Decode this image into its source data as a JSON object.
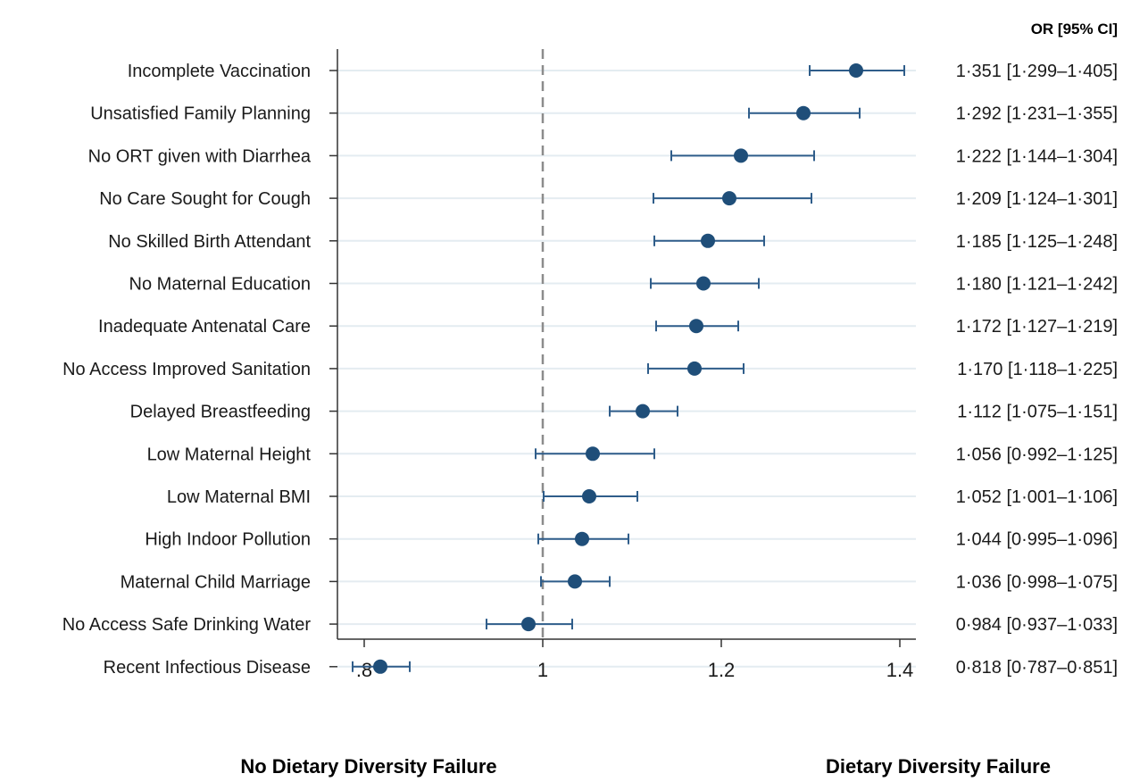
{
  "chart_data": {
    "type": "scatter",
    "subtype": "forest-plot",
    "column_header": "OR [95% CI]",
    "bottom_left_label": "No Dietary Diversity Failure",
    "bottom_right_label": "Dietary Diversity Failure",
    "reference_line": 1,
    "xlim": [
      0.78,
      1.42
    ],
    "xticks": [
      0.8,
      1,
      1.2,
      1.4
    ],
    "xtick_labels": [
      ".8",
      "1",
      "1.2",
      "1.4"
    ],
    "grid": "horizontal",
    "colors": {
      "marker": "#1f4e79",
      "ci": "#2f5d8a",
      "grid": "#e4ecf1",
      "refline": "#8c8c8c",
      "axis": "#333333"
    },
    "rows": [
      {
        "label": "Incomplete Vaccination",
        "or": 1.351,
        "lo": 1.299,
        "hi": 1.405,
        "text": "1·351 [1·299–1·405]"
      },
      {
        "label": "Unsatisfied Family Planning",
        "or": 1.292,
        "lo": 1.231,
        "hi": 1.355,
        "text": "1·292 [1·231–1·355]"
      },
      {
        "label": "No ORT given with Diarrhea",
        "or": 1.222,
        "lo": 1.144,
        "hi": 1.304,
        "text": "1·222 [1·144–1·304]"
      },
      {
        "label": "No Care Sought for Cough",
        "or": 1.209,
        "lo": 1.124,
        "hi": 1.301,
        "text": "1·209 [1·124–1·301]"
      },
      {
        "label": "No Skilled Birth Attendant",
        "or": 1.185,
        "lo": 1.125,
        "hi": 1.248,
        "text": "1·185 [1·125–1·248]"
      },
      {
        "label": "No Maternal Education",
        "or": 1.18,
        "lo": 1.121,
        "hi": 1.242,
        "text": "1·180 [1·121–1·242]"
      },
      {
        "label": "Inadequate Antenatal Care",
        "or": 1.172,
        "lo": 1.127,
        "hi": 1.219,
        "text": "1·172 [1·127–1·219]"
      },
      {
        "label": "No Access Improved Sanitation",
        "or": 1.17,
        "lo": 1.118,
        "hi": 1.225,
        "text": "1·170 [1·118–1·225]"
      },
      {
        "label": "Delayed Breastfeeding",
        "or": 1.112,
        "lo": 1.075,
        "hi": 1.151,
        "text": "1·112 [1·075–1·151]"
      },
      {
        "label": "Low Maternal Height",
        "or": 1.056,
        "lo": 0.992,
        "hi": 1.125,
        "text": "1·056 [0·992–1·125]"
      },
      {
        "label": "Low Maternal BMI",
        "or": 1.052,
        "lo": 1.001,
        "hi": 1.106,
        "text": "1·052 [1·001–1·106]"
      },
      {
        "label": "High Indoor Pollution",
        "or": 1.044,
        "lo": 0.995,
        "hi": 1.096,
        "text": "1·044 [0·995–1·096]"
      },
      {
        "label": "Maternal Child Marriage",
        "or": 1.036,
        "lo": 0.998,
        "hi": 1.075,
        "text": "1·036 [0·998–1·075]"
      },
      {
        "label": "No Access Safe Drinking Water",
        "or": 0.984,
        "lo": 0.937,
        "hi": 1.033,
        "text": "0·984 [0·937–1·033]"
      },
      {
        "label": "Recent Infectious Disease",
        "or": 0.818,
        "lo": 0.787,
        "hi": 0.851,
        "text": "0·818 [0·787–0·851]"
      }
    ]
  }
}
